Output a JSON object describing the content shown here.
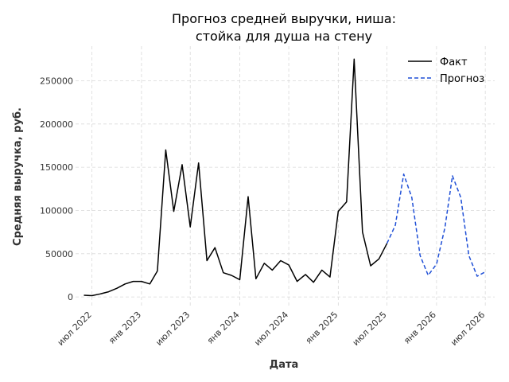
{
  "chart_data": {
    "type": "line",
    "title_line1": "Прогноз средней выручки, ниша:",
    "title_line2": "стойка для душа на стену",
    "xlabel": "Дата",
    "ylabel": "Средняя выручка, руб.",
    "ylim": [
      -10000,
      290000
    ],
    "xlim": [
      "2022-05-01",
      "2026-08-05"
    ],
    "grid": true,
    "legend_position": "top-right",
    "y_ticks": [
      0,
      50000,
      100000,
      150000,
      200000,
      250000
    ],
    "x_ticks": [
      {
        "date": "2022-07-01",
        "label": "июл 2022"
      },
      {
        "date": "2023-01-01",
        "label": "янв 2023"
      },
      {
        "date": "2023-07-01",
        "label": "июл 2023"
      },
      {
        "date": "2024-01-01",
        "label": "янв 2024"
      },
      {
        "date": "2024-07-01",
        "label": "июл 2024"
      },
      {
        "date": "2025-01-01",
        "label": "янв 2025"
      },
      {
        "date": "2025-07-01",
        "label": "июл 2025"
      },
      {
        "date": "2026-01-01",
        "label": "янв 2026"
      },
      {
        "date": "2026-07-01",
        "label": "июл 2026"
      }
    ],
    "series": [
      {
        "name": "Факт",
        "color": "#000000",
        "dash": "solid",
        "points": [
          [
            "2022-06-01",
            2000
          ],
          [
            "2022-07-01",
            1500
          ],
          [
            "2022-08-01",
            3500
          ],
          [
            "2022-09-01",
            6000
          ],
          [
            "2022-10-01",
            10000
          ],
          [
            "2022-11-01",
            15000
          ],
          [
            "2022-12-01",
            18000
          ],
          [
            "2023-01-01",
            18000
          ],
          [
            "2023-02-01",
            15000
          ],
          [
            "2023-03-01",
            30000
          ],
          [
            "2023-04-01",
            170000
          ],
          [
            "2023-05-01",
            99000
          ],
          [
            "2023-06-01",
            153000
          ],
          [
            "2023-07-01",
            81000
          ],
          [
            "2023-08-01",
            155000
          ],
          [
            "2023-09-01",
            42000
          ],
          [
            "2023-10-01",
            57000
          ],
          [
            "2023-11-01",
            28000
          ],
          [
            "2023-12-01",
            25000
          ],
          [
            "2024-01-01",
            20000
          ],
          [
            "2024-02-01",
            116000
          ],
          [
            "2024-03-01",
            21000
          ],
          [
            "2024-04-01",
            39000
          ],
          [
            "2024-05-01",
            31000
          ],
          [
            "2024-06-01",
            42000
          ],
          [
            "2024-07-01",
            37000
          ],
          [
            "2024-08-01",
            18000
          ],
          [
            "2024-09-01",
            26000
          ],
          [
            "2024-10-01",
            17000
          ],
          [
            "2024-11-01",
            31000
          ],
          [
            "2024-12-01",
            23000
          ],
          [
            "2025-01-01",
            99000
          ],
          [
            "2025-02-01",
            110000
          ],
          [
            "2025-03-01",
            275000
          ],
          [
            "2025-04-01",
            75000
          ],
          [
            "2025-05-01",
            36000
          ],
          [
            "2025-06-01",
            44000
          ],
          [
            "2025-07-01",
            62000
          ]
        ]
      },
      {
        "name": "Прогноз",
        "color": "#1f4fd6",
        "dash": "dashed",
        "points": [
          [
            "2025-07-01",
            62000
          ],
          [
            "2025-08-01",
            83000
          ],
          [
            "2025-09-01",
            142000
          ],
          [
            "2025-10-01",
            115000
          ],
          [
            "2025-11-01",
            48000
          ],
          [
            "2025-12-01",
            25000
          ],
          [
            "2026-01-01",
            38000
          ],
          [
            "2026-02-01",
            80000
          ],
          [
            "2026-03-01",
            140000
          ],
          [
            "2026-04-01",
            115000
          ],
          [
            "2026-05-01",
            48000
          ],
          [
            "2026-06-01",
            24000
          ],
          [
            "2026-07-01",
            29000
          ]
        ]
      }
    ]
  }
}
